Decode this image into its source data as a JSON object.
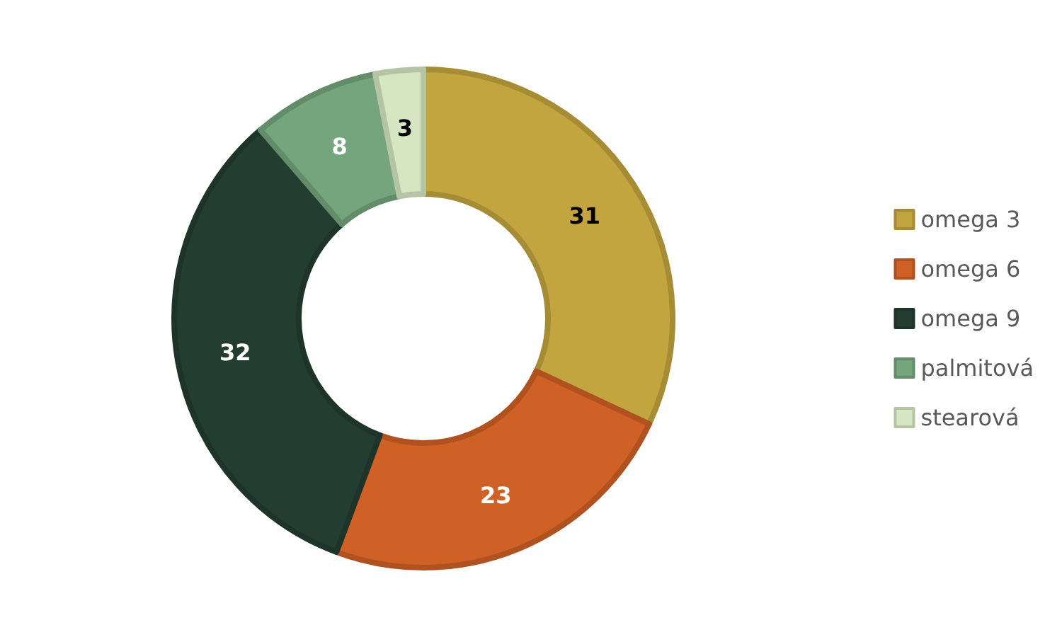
{
  "chart_data": {
    "type": "donut",
    "categories": [
      "omega 3",
      "omega 6",
      "omega 9",
      "palmitová",
      "stearová"
    ],
    "values": [
      31,
      23,
      32,
      8,
      3
    ],
    "colors": [
      "#c2a53e",
      "#cf6126",
      "#233d31",
      "#74a57c",
      "#d6e6c3"
    ],
    "data_labels": true,
    "legend": "right"
  }
}
